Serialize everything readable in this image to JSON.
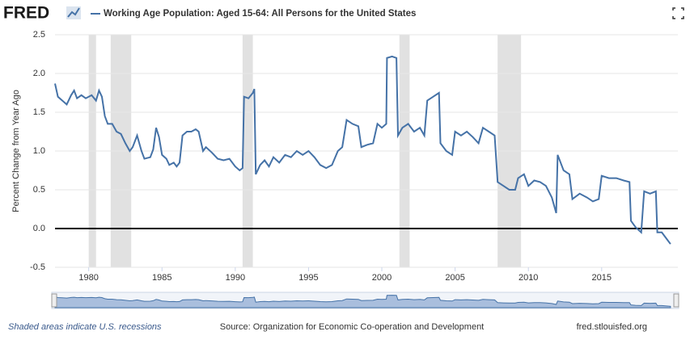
{
  "chart_data": {
    "type": "line",
    "logo": "FRED",
    "series_title": "Working Age Population: Aged 15-64: All Persons for the United States",
    "ylabel": "Percent Change from Year Ago",
    "footer_left": "Shaded areas indicate U.S. recessions",
    "footer_center": "Source: Organization for Economic Co-operation and Development",
    "footer_right": "fred.stlouisfed.org",
    "color": "#4572a7",
    "recession_color": "#e1e1e1",
    "grid": true,
    "xlim": [
      1977.7,
      2020.2
    ],
    "ylim": [
      -0.5,
      2.5
    ],
    "xticks": [
      1980,
      1985,
      1990,
      1995,
      2000,
      2005,
      2010,
      2015
    ],
    "yticks": [
      2.5,
      {
        "value": 2,
        "label": "2.0"
      },
      1.5,
      {
        "value": 1,
        "label": "1.0"
      },
      0.5,
      {
        "value": 0,
        "label": "0.0"
      },
      -0.5
    ],
    "recessions": [
      [
        1980.0,
        1980.5
      ],
      [
        1981.5,
        1982.9
      ],
      [
        1990.5,
        1991.2
      ],
      [
        2001.2,
        2001.9
      ],
      [
        2007.9,
        2009.5
      ]
    ],
    "x": [
      1977.7,
      1977.9,
      1978.2,
      1978.5,
      1978.8,
      1979.0,
      1979.2,
      1979.5,
      1979.8,
      1980.2,
      1980.5,
      1980.7,
      1980.9,
      1981.1,
      1981.3,
      1981.6,
      1981.9,
      1982.2,
      1982.5,
      1982.8,
      1983.0,
      1983.3,
      1983.6,
      1983.8,
      1984.2,
      1984.4,
      1984.6,
      1984.8,
      1985.0,
      1985.3,
      1985.5,
      1985.8,
      1986.0,
      1986.2,
      1986.4,
      1986.7,
      1987.0,
      1987.3,
      1987.5,
      1987.8,
      1988.0,
      1988.4,
      1988.8,
      1989.2,
      1989.6,
      1990.0,
      1990.3,
      1990.5,
      1990.6,
      1990.9,
      1991.2,
      1991.3,
      1991.4,
      1991.7,
      1992.0,
      1992.3,
      1992.6,
      1993.0,
      1993.4,
      1993.8,
      1994.2,
      1994.6,
      1995.0,
      1995.4,
      1995.8,
      1996.2,
      1996.6,
      1997.0,
      1997.3,
      1997.6,
      1998.0,
      1998.4,
      1998.6,
      1999.0,
      1999.4,
      1999.7,
      2000.0,
      2000.3,
      2000.35,
      2000.7,
      2001.0,
      2001.1,
      2001.4,
      2001.8,
      2002.2,
      2002.6,
      2002.9,
      2003.1,
      2003.5,
      2003.9,
      2004.0,
      2004.4,
      2004.8,
      2005.0,
      2005.4,
      2005.8,
      2006.2,
      2006.6,
      2006.9,
      2007.3,
      2007.7,
      2007.9,
      2008.3,
      2008.7,
      2009.1,
      2009.3,
      2009.7,
      2010.0,
      2010.4,
      2010.8,
      2011.2,
      2011.6,
      2011.9,
      2012.0,
      2012.4,
      2012.8,
      2013.0,
      2013.5,
      2014.0,
      2014.4,
      2014.8,
      2015.0,
      2015.5,
      2016.0,
      2016.5,
      2016.9,
      2017.0,
      2017.3,
      2017.7,
      2017.9,
      2018.3,
      2018.7,
      2018.8,
      2019.1,
      2019.5,
      2019.7
    ],
    "values": [
      1.87,
      1.7,
      1.65,
      1.6,
      1.72,
      1.78,
      1.68,
      1.72,
      1.68,
      1.72,
      1.65,
      1.78,
      1.7,
      1.45,
      1.35,
      1.35,
      1.25,
      1.22,
      1.1,
      1.0,
      1.05,
      1.2,
      1.0,
      0.9,
      0.92,
      1.02,
      1.3,
      1.18,
      0.95,
      0.9,
      0.82,
      0.85,
      0.8,
      0.85,
      1.2,
      1.25,
      1.25,
      1.28,
      1.25,
      1.0,
      1.05,
      0.98,
      0.9,
      0.88,
      0.9,
      0.8,
      0.75,
      0.78,
      1.7,
      1.68,
      1.75,
      1.8,
      0.7,
      0.82,
      0.88,
      0.8,
      0.92,
      0.85,
      0.95,
      0.92,
      1.0,
      0.95,
      1.0,
      0.92,
      0.82,
      0.78,
      0.82,
      1.0,
      1.05,
      1.4,
      1.35,
      1.32,
      1.05,
      1.08,
      1.1,
      1.35,
      1.3,
      1.35,
      2.2,
      2.22,
      2.2,
      1.2,
      1.3,
      1.35,
      1.25,
      1.3,
      1.2,
      1.65,
      1.7,
      1.75,
      1.1,
      1.0,
      0.95,
      1.25,
      1.2,
      1.25,
      1.18,
      1.1,
      1.3,
      1.25,
      1.2,
      0.6,
      0.55,
      0.5,
      0.5,
      0.65,
      0.7,
      0.55,
      0.62,
      0.6,
      0.55,
      0.4,
      0.2,
      0.95,
      0.75,
      0.7,
      0.38,
      0.45,
      0.4,
      0.35,
      0.38,
      0.68,
      0.65,
      0.65,
      0.62,
      0.6,
      0.1,
      0.02,
      -0.05,
      0.48,
      0.45,
      0.48,
      -0.05,
      -0.05,
      -0.15,
      -0.2
    ]
  }
}
